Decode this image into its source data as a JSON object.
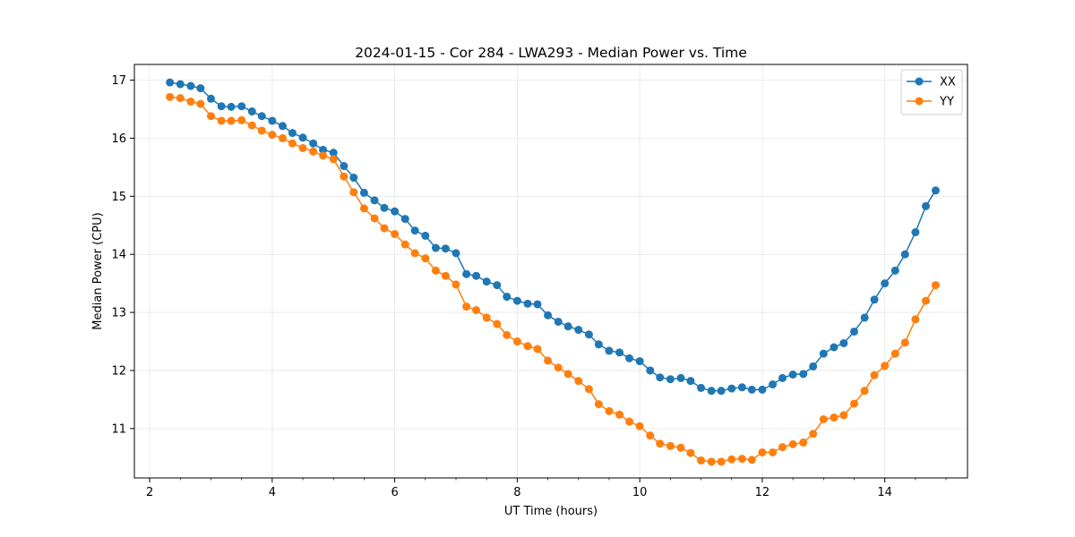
{
  "chart_data": {
    "type": "line",
    "title": "2024-01-15 - Cor 284 - LWA293 - Median Power vs. Time",
    "xlabel": "UT Time (hours)",
    "ylabel": "Median Power (CPU)",
    "xlim": [
      1.75,
      15.35
    ],
    "ylim": [
      10.15,
      17.27
    ],
    "xticks": [
      2,
      4,
      6,
      8,
      10,
      12,
      14
    ],
    "yticks": [
      11,
      12,
      13,
      14,
      15,
      16,
      17
    ],
    "grid": true,
    "legend_position": "top-right",
    "x": [
      2.33,
      2.5,
      2.67,
      2.83,
      3.0,
      3.17,
      3.33,
      3.5,
      3.67,
      3.83,
      4.0,
      4.17,
      4.33,
      4.5,
      4.67,
      4.83,
      5.0,
      5.17,
      5.33,
      5.5,
      5.67,
      5.83,
      6.0,
      6.17,
      6.33,
      6.5,
      6.67,
      6.83,
      7.0,
      7.17,
      7.33,
      7.5,
      7.67,
      7.83,
      8.0,
      8.17,
      8.33,
      8.5,
      8.67,
      8.83,
      9.0,
      9.17,
      9.33,
      9.5,
      9.67,
      9.83,
      10.0,
      10.17,
      10.33,
      10.5,
      10.67,
      10.83,
      11.0,
      11.17,
      11.33,
      11.5,
      11.67,
      11.83,
      12.0,
      12.17,
      12.33,
      12.5,
      12.67,
      12.83,
      13.0,
      13.17,
      13.33,
      13.5,
      13.67,
      13.83,
      14.0,
      14.17,
      14.33,
      14.5,
      14.67,
      14.83
    ],
    "series": [
      {
        "name": "XX",
        "color": "#1f77b4",
        "values": [
          16.96,
          16.93,
          16.9,
          16.86,
          16.68,
          16.55,
          16.54,
          16.55,
          16.46,
          16.38,
          16.3,
          16.21,
          16.09,
          16.01,
          15.91,
          15.8,
          15.75,
          15.52,
          15.32,
          15.06,
          14.93,
          14.8,
          14.74,
          14.61,
          14.41,
          14.32,
          14.11,
          14.1,
          14.02,
          13.66,
          13.63,
          13.53,
          13.47,
          13.27,
          13.2,
          13.15,
          13.14,
          12.95,
          12.84,
          12.76,
          12.7,
          12.62,
          12.45,
          12.34,
          12.31,
          12.21,
          12.16,
          12.0,
          11.88,
          11.85,
          11.87,
          11.82,
          11.7,
          11.65,
          11.65,
          11.69,
          11.71,
          11.67,
          11.67,
          11.76,
          11.87,
          11.93,
          11.94,
          12.07,
          12.29,
          12.4,
          12.47,
          12.67,
          12.91,
          13.22,
          13.5,
          13.72,
          14.0,
          14.38,
          14.83,
          15.1
        ]
      },
      {
        "name": "YY",
        "color": "#ff7f0e",
        "values": [
          16.71,
          16.69,
          16.63,
          16.59,
          16.38,
          16.3,
          16.3,
          16.31,
          16.22,
          16.13,
          16.06,
          16.0,
          15.91,
          15.83,
          15.77,
          15.7,
          15.64,
          15.34,
          15.07,
          14.79,
          14.62,
          14.45,
          14.35,
          14.17,
          14.02,
          13.93,
          13.72,
          13.63,
          13.48,
          13.1,
          13.04,
          12.91,
          12.8,
          12.61,
          12.5,
          12.42,
          12.37,
          12.17,
          12.05,
          11.94,
          11.82,
          11.68,
          11.42,
          11.3,
          11.24,
          11.12,
          11.04,
          10.88,
          10.74,
          10.7,
          10.67,
          10.58,
          10.45,
          10.43,
          10.43,
          10.47,
          10.48,
          10.46,
          10.59,
          10.59,
          10.68,
          10.73,
          10.76,
          10.91,
          11.16,
          11.19,
          11.23,
          11.43,
          11.65,
          11.92,
          12.08,
          12.29,
          12.48,
          12.88,
          13.2,
          13.47
        ]
      }
    ]
  }
}
